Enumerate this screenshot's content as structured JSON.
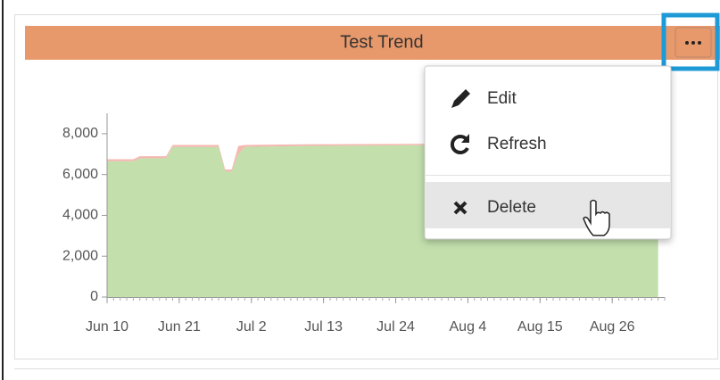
{
  "widget": {
    "title": "Test Trend",
    "menu": {
      "items": [
        "Edit",
        "Refresh",
        "Delete"
      ]
    },
    "chart_data": {
      "type": "area",
      "x": [
        "Jun 10",
        "Jun 14",
        "Jun 15",
        "Jun 19",
        "Jun 20",
        "Jun 27",
        "Jun 28",
        "Jun 29",
        "Jun 30",
        "Jul 1",
        "Jul 10",
        "Aug 1",
        "Sep 2"
      ],
      "series": [
        {
          "color": "#c2dfac",
          "values": [
            6650,
            6650,
            6800,
            6800,
            7350,
            7350,
            6150,
            6150,
            7000,
            7350,
            7400,
            7450,
            7450
          ]
        },
        {
          "color": "#f4b8b0",
          "values": [
            100,
            100,
            100,
            100,
            100,
            100,
            100,
            100,
            400,
            100,
            80,
            60,
            60
          ]
        }
      ],
      "stacked": true,
      "xlim": [
        "Jun 10",
        "Sep 3"
      ],
      "xticks": [
        "Jun 10",
        "Jun 21",
        "Jul 2",
        "Jul 13",
        "Jul 24",
        "Aug 4",
        "Aug 15",
        "Aug 26"
      ],
      "ylim": [
        0,
        9000
      ],
      "yticks": [
        0,
        {
          "value": 2000,
          "label": "2,000"
        },
        {
          "value": 4000,
          "label": "4,000"
        },
        {
          "value": 6000,
          "label": "6,000"
        },
        {
          "value": 8000,
          "label": "8,000"
        }
      ]
    }
  }
}
